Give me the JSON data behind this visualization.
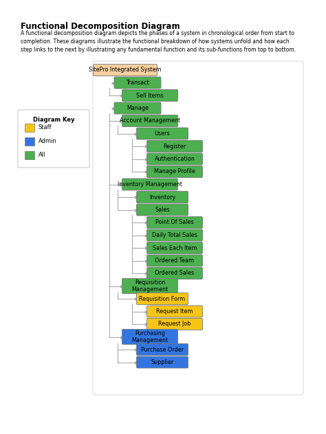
{
  "title": "Functional Decomposition Diagram",
  "description": "A functional decomposition diagram depicts the phases of a system in chronological order from start to\ncompletion. These diagrams illustrate the functional breakdown of how systems unfold and how each\nstep links to the next by illustrating any fundamental function and its sub-functions from top to bottom.",
  "colors": {
    "green": "#4CAF50",
    "yellow": "#F5C518",
    "blue": "#2979FF",
    "peach": "#F5CFA0",
    "white": "#FFFFFF",
    "line": "#AAAAAA"
  },
  "legend": {
    "title": "Diagram Key",
    "items": [
      {
        "label": "Staff",
        "color": "yellow"
      },
      {
        "label": "Admin",
        "color": "blue"
      },
      {
        "label": "All",
        "color": "green"
      }
    ]
  },
  "nodes": [
    {
      "id": "root",
      "label": "SitePro Integrated System",
      "color": "peach",
      "level": 0,
      "row": 0
    },
    {
      "id": "transact",
      "label": "Transact",
      "color": "green",
      "level": 1,
      "row": 1
    },
    {
      "id": "sell_items",
      "label": "Sell Items",
      "color": "green",
      "level": 2,
      "row": 2
    },
    {
      "id": "manage",
      "label": "Manage",
      "color": "green",
      "level": 1,
      "row": 3
    },
    {
      "id": "acct_mgmt",
      "label": "Account Management",
      "color": "green",
      "level": 2,
      "row": 4
    },
    {
      "id": "users",
      "label": "Users",
      "color": "green",
      "level": 3,
      "row": 5
    },
    {
      "id": "register",
      "label": "Register",
      "color": "green",
      "level": 4,
      "row": 6
    },
    {
      "id": "auth",
      "label": "Authentication",
      "color": "green",
      "level": 4,
      "row": 7
    },
    {
      "id": "manage_profile",
      "label": "Manage Profile",
      "color": "green",
      "level": 4,
      "row": 8
    },
    {
      "id": "inv_mgmt",
      "label": "Inventory Management",
      "color": "green",
      "level": 2,
      "row": 9
    },
    {
      "id": "inventory",
      "label": "Inventory",
      "color": "green",
      "level": 3,
      "row": 10
    },
    {
      "id": "sales",
      "label": "Sales",
      "color": "green",
      "level": 3,
      "row": 11
    },
    {
      "id": "pos",
      "label": "Point Of Sales",
      "color": "green",
      "level": 4,
      "row": 12
    },
    {
      "id": "daily_total",
      "label": "Daily Total Sales",
      "color": "green",
      "level": 4,
      "row": 13
    },
    {
      "id": "sales_each",
      "label": "Sales Each Item",
      "color": "green",
      "level": 4,
      "row": 14
    },
    {
      "id": "ordered_team",
      "label": "Ordered Team",
      "color": "green",
      "level": 4,
      "row": 15
    },
    {
      "id": "ordered_sales",
      "label": "Ordered Sales",
      "color": "green",
      "level": 4,
      "row": 16
    },
    {
      "id": "req_mgmt",
      "label": "Requisition\nManagement",
      "color": "green",
      "level": 2,
      "row": 17
    },
    {
      "id": "req_form",
      "label": "Requisition Form",
      "color": "yellow",
      "level": 3,
      "row": 18
    },
    {
      "id": "req_item",
      "label": "Request Item",
      "color": "yellow",
      "level": 4,
      "row": 19
    },
    {
      "id": "req_job",
      "label": "Request Job",
      "color": "yellow",
      "level": 4,
      "row": 20
    },
    {
      "id": "purch_mgmt",
      "label": "Purchasing\nManagement",
      "color": "blue",
      "level": 2,
      "row": 21
    },
    {
      "id": "purch_order",
      "label": "Purchase Order",
      "color": "blue",
      "level": 3,
      "row": 22
    },
    {
      "id": "supplier",
      "label": "Supplier",
      "color": "blue",
      "level": 3,
      "row": 23
    }
  ]
}
